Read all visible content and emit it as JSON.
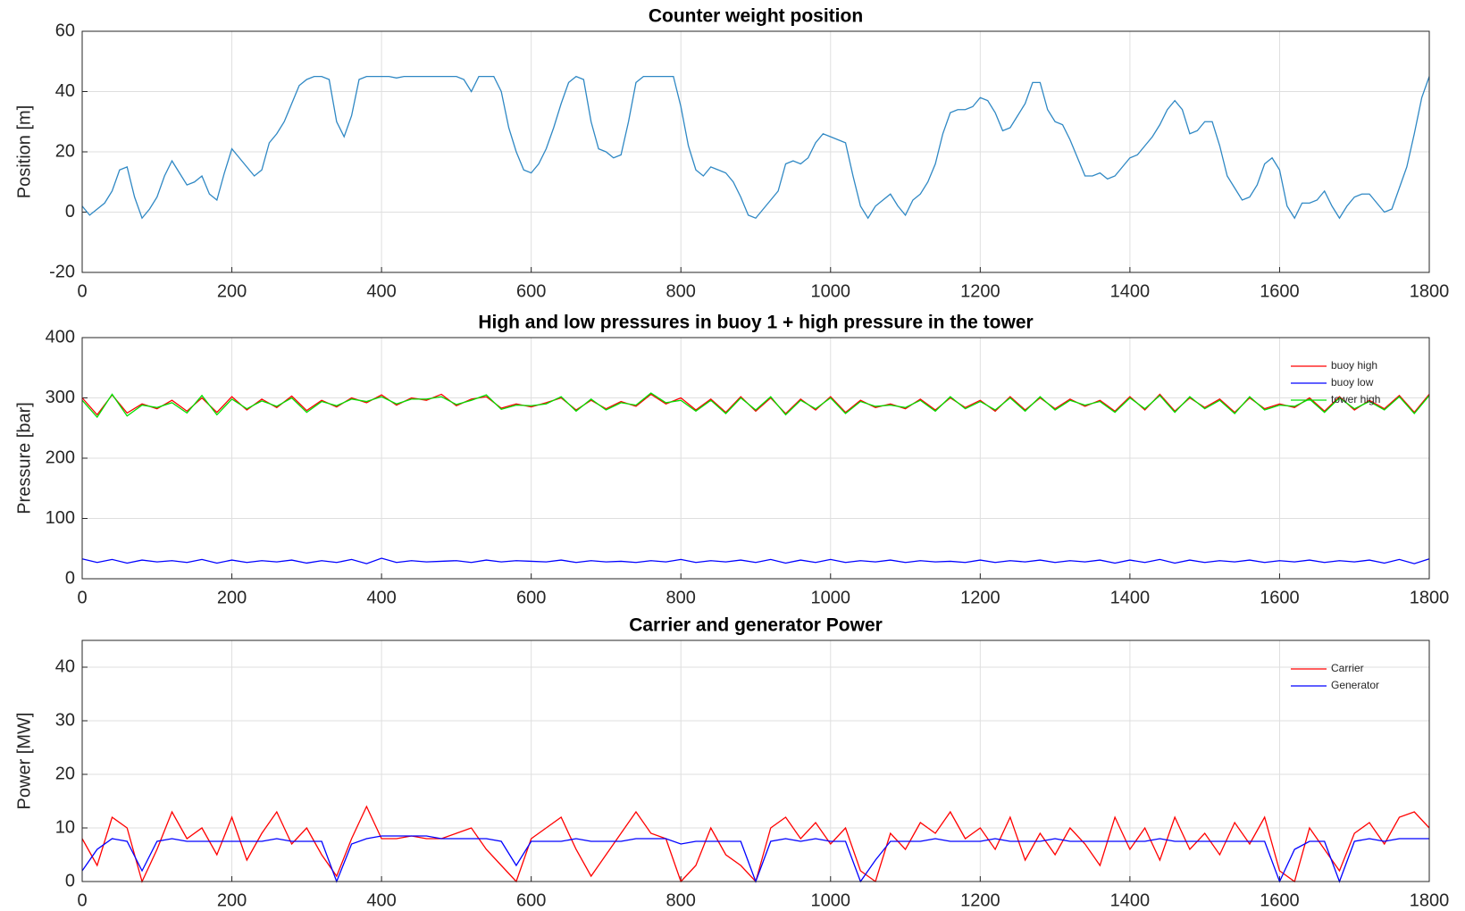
{
  "chart_data": [
    {
      "type": "line",
      "title": "Counter weight position",
      "ylabel": "Position [m]",
      "color": "#2f88c4",
      "grid": true,
      "xlim": [
        0,
        1800
      ],
      "xticks": [
        0,
        200,
        400,
        600,
        800,
        1000,
        1200,
        1400,
        1600,
        1800
      ],
      "ylim": [
        -20,
        60
      ],
      "yticks": [
        -20,
        0,
        20,
        40,
        60
      ],
      "x": [
        0,
        10,
        20,
        30,
        40,
        50,
        60,
        70,
        80,
        90,
        100,
        110,
        120,
        130,
        140,
        150,
        160,
        170,
        180,
        190,
        200,
        210,
        220,
        230,
        240,
        250,
        260,
        270,
        280,
        290,
        300,
        310,
        320,
        330,
        340,
        350,
        360,
        370,
        380,
        390,
        400,
        410,
        420,
        430,
        440,
        450,
        460,
        470,
        480,
        490,
        500,
        510,
        520,
        530,
        540,
        550,
        560,
        570,
        580,
        590,
        600,
        610,
        620,
        630,
        640,
        650,
        660,
        670,
        680,
        690,
        700,
        710,
        720,
        730,
        740,
        750,
        760,
        770,
        780,
        790,
        800,
        810,
        820,
        830,
        840,
        850,
        860,
        870,
        880,
        890,
        900,
        910,
        920,
        930,
        940,
        950,
        960,
        970,
        980,
        990,
        1000,
        1010,
        1020,
        1030,
        1040,
        1050,
        1060,
        1070,
        1080,
        1090,
        1100,
        1110,
        1120,
        1130,
        1140,
        1150,
        1160,
        1170,
        1180,
        1190,
        1200,
        1210,
        1220,
        1230,
        1240,
        1250,
        1260,
        1270,
        1280,
        1290,
        1300,
        1310,
        1320,
        1330,
        1340,
        1350,
        1360,
        1370,
        1380,
        1390,
        1400,
        1410,
        1420,
        1430,
        1440,
        1450,
        1460,
        1470,
        1480,
        1490,
        1500,
        1510,
        1520,
        1530,
        1540,
        1550,
        1560,
        1570,
        1580,
        1590,
        1600,
        1610,
        1620,
        1630,
        1640,
        1650,
        1660,
        1670,
        1680,
        1690,
        1700,
        1710,
        1720,
        1730,
        1740,
        1750,
        1760,
        1770,
        1780,
        1790,
        1800
      ],
      "values": [
        2,
        -1,
        1,
        3,
        7,
        14,
        15,
        5,
        -2,
        1,
        5,
        12,
        17,
        13,
        9,
        10,
        12,
        6,
        4,
        13,
        21,
        18,
        15,
        12,
        14,
        23,
        26,
        30,
        36,
        42,
        44,
        45,
        45,
        44,
        30,
        25,
        32,
        44,
        45,
        45,
        45,
        45,
        44.5,
        45,
        45,
        45,
        45,
        45,
        45,
        45,
        45,
        44,
        40,
        45,
        45,
        45,
        40,
        28,
        20,
        14,
        13,
        16,
        21,
        28,
        36,
        43,
        45,
        44,
        30,
        21,
        20,
        18,
        19,
        30,
        43,
        45,
        45,
        45,
        45,
        45,
        35,
        22,
        14,
        12,
        15,
        14,
        13,
        10,
        5,
        -1,
        -2,
        1,
        4,
        7,
        16,
        17,
        16,
        18,
        23,
        26,
        25,
        24,
        23,
        12,
        2,
        -2,
        2,
        4,
        6,
        2,
        -1,
        4,
        6,
        10,
        16,
        26,
        33,
        34,
        34,
        35,
        38,
        37,
        33,
        27,
        28,
        32,
        36,
        43,
        43,
        34,
        30,
        29,
        24,
        18,
        12,
        12,
        13,
        11,
        12,
        15,
        18,
        19,
        22,
        25,
        29,
        34,
        37,
        34,
        26,
        27,
        30,
        30,
        22,
        12,
        8,
        4,
        5,
        9,
        16,
        18,
        14,
        2,
        -2,
        3,
        3,
        4,
        7,
        2,
        -2,
        2,
        5,
        6,
        6,
        3,
        0,
        1,
        8,
        15,
        26,
        38,
        45
      ]
    },
    {
      "type": "line",
      "title": "High and low pressures in buoy 1 + high pressure in the tower",
      "ylabel": "Pressure [bar]",
      "grid": true,
      "legend": "upper right",
      "xlim": [
        0,
        1800
      ],
      "xticks": [
        0,
        200,
        400,
        600,
        800,
        1000,
        1200,
        1400,
        1600,
        1800
      ],
      "ylim": [
        0,
        400
      ],
      "yticks": [
        0,
        100,
        200,
        300,
        400
      ],
      "x": [
        0,
        20,
        40,
        60,
        80,
        100,
        120,
        140,
        160,
        180,
        200,
        220,
        240,
        260,
        280,
        300,
        320,
        340,
        360,
        380,
        400,
        420,
        440,
        460,
        480,
        500,
        520,
        540,
        560,
        580,
        600,
        620,
        640,
        660,
        680,
        700,
        720,
        740,
        760,
        780,
        800,
        820,
        840,
        860,
        880,
        900,
        920,
        940,
        960,
        980,
        1000,
        1020,
        1040,
        1060,
        1080,
        1100,
        1120,
        1140,
        1160,
        1180,
        1200,
        1220,
        1240,
        1260,
        1280,
        1300,
        1320,
        1340,
        1360,
        1380,
        1400,
        1420,
        1440,
        1460,
        1480,
        1500,
        1520,
        1540,
        1560,
        1580,
        1600,
        1620,
        1640,
        1660,
        1680,
        1700,
        1720,
        1740,
        1760,
        1780,
        1800
      ],
      "series": [
        {
          "name": "buoy high",
          "color": "#ff0000",
          "values": [
            300,
            272,
            305,
            275,
            290,
            282,
            296,
            278,
            300,
            276,
            302,
            280,
            298,
            284,
            303,
            279,
            296,
            285,
            300,
            292,
            305,
            288,
            300,
            296,
            306,
            287,
            298,
            302,
            283,
            290,
            285,
            292,
            300,
            280,
            296,
            282,
            294,
            286,
            306,
            290,
            300,
            280,
            298,
            276,
            302,
            278,
            300,
            274,
            298,
            280,
            302,
            276,
            296,
            284,
            290,
            282,
            298,
            280,
            300,
            284,
            296,
            278,
            302,
            280,
            300,
            282,
            298,
            286,
            296,
            278,
            302,
            280,
            306,
            278,
            300,
            284,
            298,
            276,
            300,
            282,
            290,
            284,
            300,
            278,
            302,
            280,
            296,
            282,
            304,
            276,
            306
          ]
        },
        {
          "name": "buoy low",
          "color": "#0000ff",
          "values": [
            33,
            27,
            32,
            26,
            31,
            28,
            30,
            27,
            32,
            26,
            31,
            27,
            30,
            28,
            31,
            26,
            30,
            27,
            32,
            25,
            34,
            27,
            30,
            28,
            29,
            30,
            27,
            31,
            28,
            30,
            29,
            28,
            31,
            27,
            30,
            28,
            29,
            27,
            30,
            28,
            32,
            27,
            30,
            28,
            31,
            27,
            32,
            26,
            31,
            27,
            32,
            27,
            30,
            28,
            31,
            27,
            30,
            28,
            29,
            27,
            31,
            27,
            30,
            28,
            31,
            27,
            30,
            28,
            31,
            26,
            31,
            27,
            32,
            26,
            31,
            27,
            30,
            28,
            31,
            27,
            30,
            28,
            31,
            27,
            30,
            28,
            31,
            26,
            32,
            25,
            33
          ]
        },
        {
          "name": "tower high",
          "color": "#00e000",
          "values": [
            296,
            268,
            306,
            270,
            288,
            284,
            292,
            275,
            304,
            272,
            298,
            282,
            295,
            286,
            300,
            276,
            294,
            287,
            298,
            294,
            302,
            290,
            298,
            298,
            302,
            289,
            296,
            305,
            281,
            288,
            287,
            290,
            302,
            278,
            298,
            280,
            292,
            288,
            308,
            292,
            296,
            278,
            296,
            274,
            300,
            280,
            302,
            272,
            296,
            282,
            300,
            274,
            294,
            286,
            288,
            284,
            296,
            278,
            302,
            282,
            294,
            280,
            300,
            278,
            302,
            280,
            296,
            288,
            294,
            276,
            300,
            282,
            304,
            276,
            302,
            282,
            296,
            274,
            302,
            280,
            288,
            286,
            298,
            276,
            300,
            282,
            294,
            280,
            302,
            274,
            304
          ]
        }
      ]
    },
    {
      "type": "line",
      "title": "Carrier and generator Power",
      "ylabel": "Power [MW]",
      "grid": true,
      "legend": "upper right",
      "xlim": [
        0,
        1800
      ],
      "xticks": [
        0,
        200,
        400,
        600,
        800,
        1000,
        1200,
        1400,
        1600,
        1800
      ],
      "ylim": [
        0,
        45
      ],
      "yticks": [
        0,
        10,
        20,
        30,
        40
      ],
      "x": [
        0,
        20,
        40,
        60,
        80,
        100,
        120,
        140,
        160,
        180,
        200,
        220,
        240,
        260,
        280,
        300,
        320,
        340,
        360,
        380,
        400,
        420,
        440,
        460,
        480,
        500,
        520,
        540,
        560,
        580,
        600,
        620,
        640,
        660,
        680,
        700,
        720,
        740,
        760,
        780,
        800,
        820,
        840,
        860,
        880,
        900,
        920,
        940,
        960,
        980,
        1000,
        1020,
        1040,
        1060,
        1080,
        1100,
        1120,
        1140,
        1160,
        1180,
        1200,
        1220,
        1240,
        1260,
        1280,
        1300,
        1320,
        1340,
        1360,
        1380,
        1400,
        1420,
        1440,
        1460,
        1480,
        1500,
        1520,
        1540,
        1560,
        1580,
        1600,
        1620,
        1640,
        1660,
        1680,
        1700,
        1720,
        1740,
        1760,
        1780,
        1800
      ],
      "series": [
        {
          "name": "Carrier",
          "color": "#ff0000",
          "values": [
            8,
            3,
            12,
            10,
            0,
            6,
            13,
            8,
            10,
            5,
            12,
            4,
            9,
            13,
            7,
            10,
            5,
            1,
            8,
            14,
            8,
            8,
            8.5,
            8,
            8,
            9,
            10,
            6,
            3,
            0,
            8,
            10,
            12,
            6,
            1,
            5,
            9,
            13,
            9,
            8,
            0,
            3,
            10,
            5,
            3,
            0,
            10,
            12,
            8,
            11,
            7,
            10,
            2,
            0,
            9,
            6,
            11,
            9,
            13,
            8,
            10,
            6,
            12,
            4,
            9,
            5,
            10,
            7,
            3,
            12,
            6,
            10,
            4,
            12,
            6,
            9,
            5,
            11,
            7,
            12,
            2,
            0,
            10,
            6,
            2,
            9,
            11,
            7,
            12,
            13,
            10
          ]
        },
        {
          "name": "Generator",
          "color": "#0000ff",
          "values": [
            2,
            6,
            8,
            7.5,
            2,
            7.5,
            8,
            7.5,
            7.5,
            7.5,
            7.5,
            7.5,
            7.5,
            8,
            7.5,
            7.5,
            7.5,
            0,
            7,
            8,
            8.5,
            8.5,
            8.5,
            8.5,
            8,
            8,
            8,
            8,
            7.5,
            3,
            7.5,
            7.5,
            7.5,
            8,
            7.5,
            7.5,
            7.5,
            8,
            8,
            8,
            7,
            7.5,
            7.5,
            7.5,
            7.5,
            0,
            7.5,
            8,
            7.5,
            8,
            7.5,
            7.5,
            0,
            4,
            7.5,
            7.5,
            7.5,
            8,
            7.5,
            7.5,
            7.5,
            8,
            7.5,
            7.5,
            7.5,
            8,
            7.5,
            7.5,
            7.5,
            7.5,
            7.5,
            7.5,
            8,
            7.5,
            7.5,
            7.5,
            7.5,
            7.5,
            7.5,
            7.5,
            0,
            6,
            7.5,
            7.5,
            0,
            7.5,
            8,
            7.5,
            8,
            8,
            8
          ]
        }
      ]
    }
  ]
}
